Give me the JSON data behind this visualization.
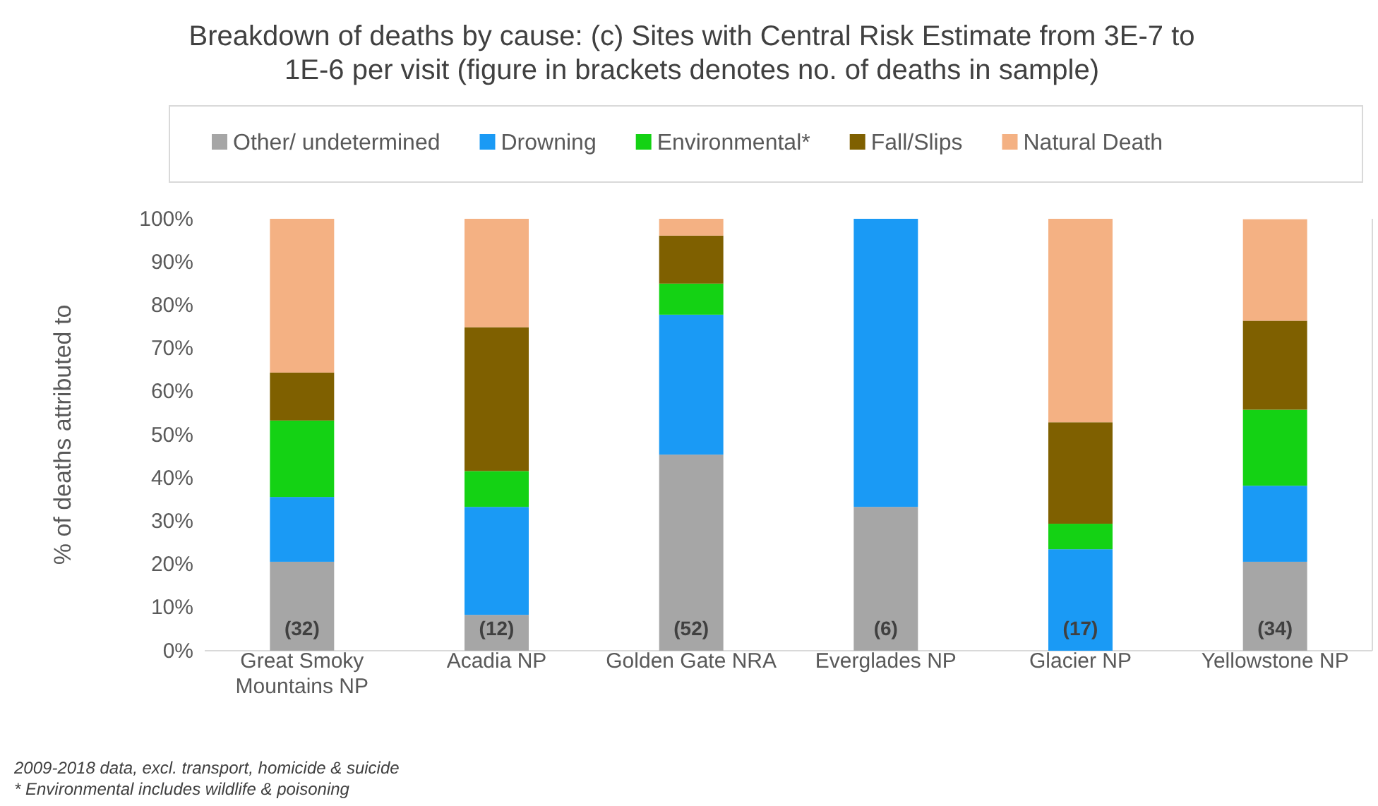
{
  "chart_data": {
    "type": "bar",
    "title": "Breakdown of deaths by cause: (c) Sites with Central Risk Estimate from 3E-7 to 1E-6 per visit (figure in brackets denotes no. of deaths in sample)",
    "ylabel": "% of deaths attributed to",
    "categories": [
      "Great Smoky Mountains NP",
      "Acadia NP",
      "Golden Gate NRA",
      "Everglades NP",
      "Glacier NP",
      "Yellowstone NP"
    ],
    "stacked": true,
    "legend": "top",
    "grid": false,
    "ylim": [
      0,
      100
    ],
    "yticks": [
      {
        "value": 0,
        "label": "0%"
      },
      {
        "value": 10,
        "label": "10%"
      },
      {
        "value": 20,
        "label": "20%"
      },
      {
        "value": 30,
        "label": "30%"
      },
      {
        "value": 40,
        "label": "40%"
      },
      {
        "value": 50,
        "label": "50%"
      },
      {
        "value": 60,
        "label": "60%"
      },
      {
        "value": 70,
        "label": "70%"
      },
      {
        "value": 80,
        "label": "80%"
      },
      {
        "value": 90,
        "label": "90%"
      },
      {
        "value": 100,
        "label": "100%"
      }
    ],
    "series": [
      {
        "name": "Other/ undetermined",
        "color": "#a6a6a6",
        "values": [
          20.6,
          8.3,
          45.4,
          33.3,
          0,
          20.6
        ]
      },
      {
        "name": "Drowning",
        "color": "#1a9af5",
        "values": [
          15,
          25,
          32.4,
          66.7,
          23.5,
          17.6
        ]
      },
      {
        "name": "Environmental*",
        "color": "#14d214",
        "values": [
          17.7,
          8.3,
          7.2,
          0,
          5.9,
          17.6
        ]
      },
      {
        "name": "Fall/Slips",
        "color": "#7f6000",
        "values": [
          11.1,
          33.3,
          11.1,
          0,
          23.5,
          20.6
        ]
      },
      {
        "name": "Natural Death",
        "color": "#f4b183",
        "values": [
          35.6,
          25.1,
          3.9,
          0,
          47.1,
          23.5
        ]
      }
    ],
    "annotations": [
      "(32)",
      "(12)",
      "(52)",
      "(6)",
      "(17)",
      "(34)",
      "2009-2018 data, excl. transport, homicide & suicide",
      "* Environmental includes wildlife  & poisoning"
    ]
  }
}
